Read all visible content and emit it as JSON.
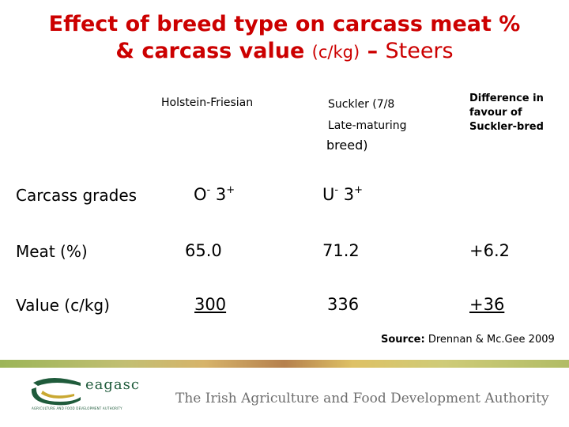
{
  "title": {
    "line1": "Effect of breed type on carcass meat %",
    "line2_bold": "& carcass value",
    "line2_paren": "(c/kg)",
    "line2_dash": " – ",
    "line2_end": "Steers"
  },
  "table": {
    "headers": {
      "holstein": "Holstein-Friesian",
      "suckler_line1": "Suckler (7/8",
      "suckler_line2": "Late-maturing",
      "suckler_line3": "breed)",
      "diff_line1": "Difference in",
      "diff_line2": "favour of",
      "diff_line3": "Suckler-bred"
    },
    "rows": {
      "grades": {
        "label": "Carcass grades",
        "holstein_base": "O",
        "holstein_sup1": "-",
        "holstein_mid": " 3",
        "holstein_sup2": "+",
        "suckler_base": "U",
        "suckler_sup1": "-",
        "suckler_mid": " 3",
        "suckler_sup2": "+"
      },
      "meat": {
        "label": "Meat (%)",
        "holstein": "65.0",
        "suckler": "71.2",
        "diff": "+6.2"
      },
      "value": {
        "label": "Value (c/kg)",
        "holstein": "300",
        "suckler": "336",
        "diff": "+36"
      }
    }
  },
  "source": {
    "label": "Source:",
    "text": " Drennan & Mc.Gee 2009"
  },
  "footer": {
    "logo_word": "eagasc",
    "logo_tagline": "AGRICULTURE AND FOOD DEVELOPMENT AUTHORITY",
    "tagline": "The Irish Agriculture and Food Development Authority"
  },
  "colors": {
    "title": "#cc0000",
    "logo_green": "#1f5b3b",
    "footer_text": "#6e6e6e"
  }
}
